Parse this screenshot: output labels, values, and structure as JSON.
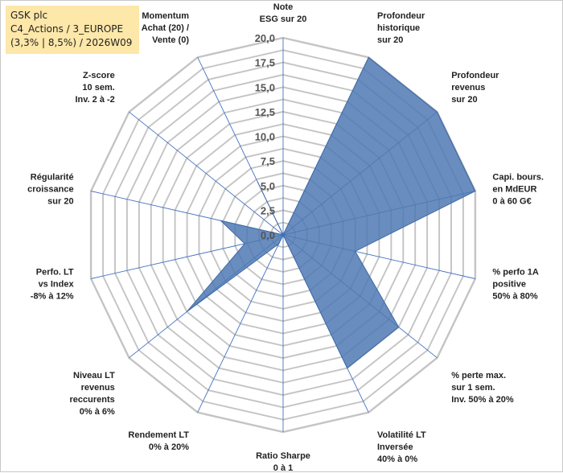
{
  "title_box": {
    "line1": "GSK plc",
    "line2": "C4_Actions / 3_EUROPE",
    "line3": "(3,3% | 8,5%) / 2026W09"
  },
  "chart_data": {
    "type": "radar",
    "rmin": 0,
    "rmax": 20,
    "tick_labels": [
      "0,0",
      "2,5",
      "5,0",
      "7,5",
      "10,0",
      "12,5",
      "15,0",
      "17,5",
      "20,0"
    ],
    "grid_levels": 16,
    "axes": [
      {
        "label": [
          "Note",
          "ESG sur 20"
        ],
        "value": 0
      },
      {
        "label": [
          "Profondeur",
          "historique",
          "sur 20"
        ],
        "value": 20
      },
      {
        "label": [
          "Profondeur",
          "revenus",
          "sur 20"
        ],
        "value": 20
      },
      {
        "label": [
          "Capi. bours.",
          "en MdEUR",
          "0 à 60 G€"
        ],
        "value": 20
      },
      {
        "label": [
          "% perfo 1A",
          "positive",
          "50% à 80%"
        ],
        "value": 7.5
      },
      {
        "label": [
          "% perte max.",
          "sur 1 sem.",
          "Inv. 50% à 20%"
        ],
        "value": 15
      },
      {
        "label": [
          "Volatilité LT",
          "Inversée",
          "40% à 0%"
        ],
        "value": 15
      },
      {
        "label": [
          "Ratio Sharpe",
          "0 à 1"
        ],
        "value": 0
      },
      {
        "label": [
          "Rendement LT",
          "0% à 20%"
        ],
        "value": 1
      },
      {
        "label": [
          "Niveau LT",
          "revenus",
          "reccurents",
          "0% à 6%"
        ],
        "value": 12.5
      },
      {
        "label": [
          "Perfo. LT",
          "vs Index",
          "-8% à 12%"
        ],
        "value": 4
      },
      {
        "label": [
          "Régularité",
          "croissance",
          "sur 20"
        ],
        "value": 6.5
      },
      {
        "label": [
          "Z-score",
          "10 sem.",
          "Inv. 2 à -2"
        ],
        "value": 0
      },
      {
        "label": [
          "Momentum",
          "Achat (20) /",
          "Vente (0)"
        ],
        "value": 6
      }
    ],
    "colors": {
      "fill": "#4f79b3",
      "stroke": "#3f6aa6",
      "grid": "#c4c4c4",
      "spoke": "#4472c4"
    }
  }
}
